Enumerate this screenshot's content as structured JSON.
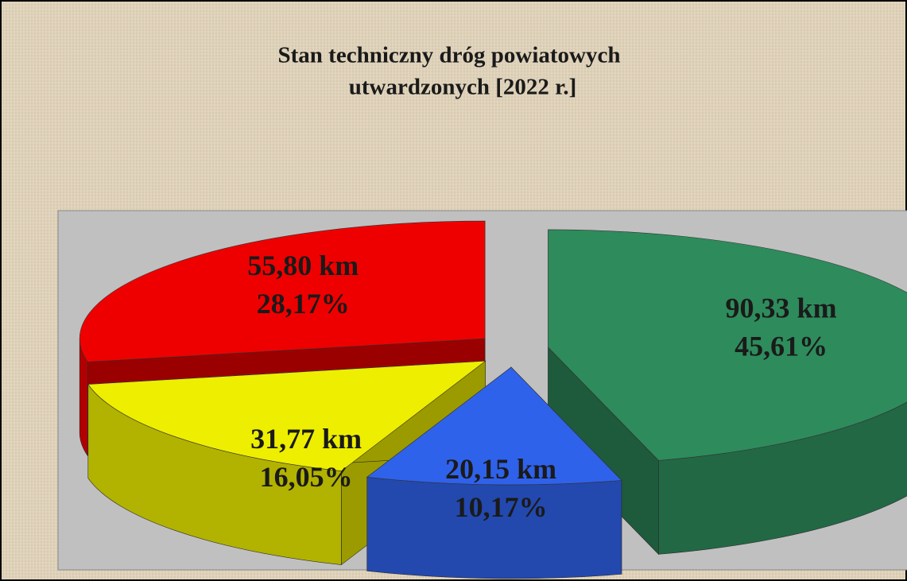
{
  "chart_data": {
    "type": "pie3d",
    "title": "Stan techniczny dróg powiatowych",
    "subtitle": "utwardzonych  [2022 r.]",
    "values": [
      90.33,
      20.15,
      31.77,
      55.8
    ],
    "value_labels": [
      "90,33 km",
      "20,15 km",
      "31,77 km",
      "55,80 km"
    ],
    "percent_values": [
      45.61,
      10.17,
      16.05,
      28.17
    ],
    "percent_labels": [
      "45,61%",
      "10,17%",
      "16,05%",
      "28,17%"
    ],
    "colors": [
      "#2e8b5c",
      "#2f62ea",
      "#eeee00",
      "#ee0000"
    ]
  }
}
